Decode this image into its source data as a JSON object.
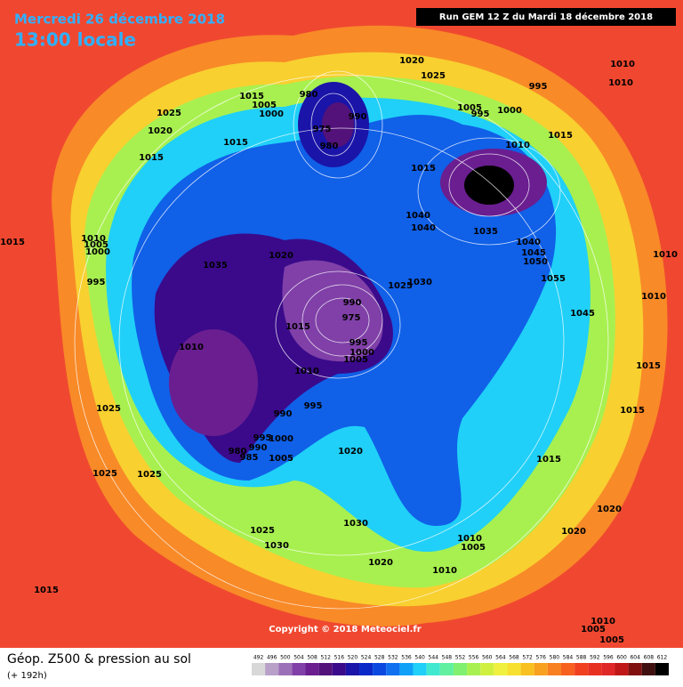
{
  "header": {
    "date": "Mercredi 26 décembre 2018",
    "time": "13:00 locale",
    "run": "Run GEM 12 Z du Mardi 18 décembre 2018"
  },
  "copyright": "Copyright © 2018 Meteociel.fr",
  "footer": {
    "title": "Géop. Z500 & pression au sol",
    "subtitle": "(+ 192h)"
  },
  "colorbar": {
    "ticks": [
      492,
      496,
      500,
      504,
      508,
      512,
      516,
      520,
      524,
      528,
      532,
      536,
      540,
      544,
      548,
      552,
      556,
      560,
      564,
      568,
      572,
      576,
      580,
      584,
      588,
      592,
      596,
      600,
      604,
      608,
      612
    ],
    "colors": [
      "#d8d8d8",
      "#b8a0c8",
      "#9c70b8",
      "#8040a8",
      "#6a1e90",
      "#52127a",
      "#3a0a8a",
      "#1a14a8",
      "#0a28c8",
      "#0a48e0",
      "#1070f0",
      "#10a0f8",
      "#20d0f8",
      "#40e8d0",
      "#60f0a0",
      "#80f070",
      "#a8f050",
      "#d0f040",
      "#f0f040",
      "#f8e030",
      "#f8c020",
      "#f8a020",
      "#f88020",
      "#f86020",
      "#f04020",
      "#e83020",
      "#e02828",
      "#c01818",
      "#801010",
      "#401010",
      "#000000"
    ]
  },
  "isobar_labels": [
    1020,
    1025,
    1010,
    1010,
    995,
    980,
    1015,
    1005,
    1000,
    1025,
    1020,
    1015,
    1015,
    975,
    980,
    990,
    1005,
    995,
    1000,
    1010,
    1015,
    1015,
    1040,
    1040,
    1035,
    1040,
    1045,
    1050,
    1055,
    1010,
    1010,
    1015,
    1010,
    1005,
    1000,
    995,
    1035,
    1020,
    1025,
    1030,
    990,
    975,
    1015,
    995,
    1000,
    1005,
    1010,
    1010,
    1045,
    1015,
    1015,
    995,
    990,
    1025,
    995,
    1000,
    990,
    980,
    985,
    1005,
    1020,
    1015,
    1025,
    1025,
    1025,
    1030,
    1030,
    1020,
    1020,
    1010,
    1005,
    1010,
    1020,
    1015,
    1010,
    1005,
    1005
  ]
}
